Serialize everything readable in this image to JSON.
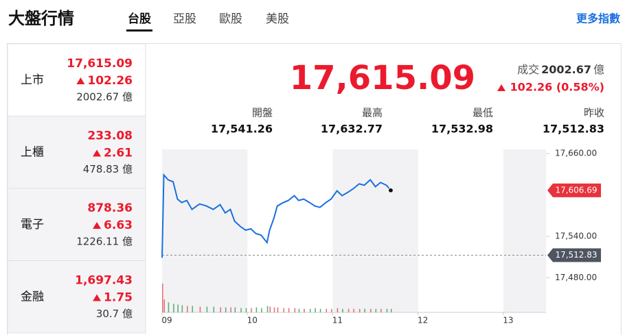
{
  "header": {
    "title": "大盤行情",
    "tabs": [
      "台股",
      "亞股",
      "歐股",
      "美股"
    ],
    "more_link": "更多指數"
  },
  "markets": [
    {
      "name": "上市",
      "price": "17,615.09",
      "change": "102.26",
      "volume": "2002.67 億"
    },
    {
      "name": "上櫃",
      "price": "233.08",
      "change": "2.61",
      "volume": "478.83 億"
    },
    {
      "name": "電子",
      "price": "878.36",
      "change": "6.63",
      "volume": "1226.11 億"
    },
    {
      "name": "金融",
      "price": "1,697.43",
      "change": "1.75",
      "volume": "30.7 億"
    }
  ],
  "summary": {
    "price": "17,615.09",
    "turnover_label": "成交",
    "turnover": "2002.67",
    "turnover_unit": "億",
    "change": "102.26 (0.58%)",
    "stats": [
      {
        "label": "開盤",
        "value": "17,541.26"
      },
      {
        "label": "最高",
        "value": "17,632.77"
      },
      {
        "label": "最低",
        "value": "17,532.98"
      },
      {
        "label": "昨收",
        "value": "17,512.83"
      }
    ]
  },
  "chart_data": {
    "type": "line",
    "xlim": [
      9,
      13.5
    ],
    "xticks": [
      {
        "value": 9,
        "label": "09"
      },
      {
        "value": 10,
        "label": "10"
      },
      {
        "value": 11,
        "label": "11"
      },
      {
        "value": 12,
        "label": "12"
      },
      {
        "value": 13,
        "label": "13"
      }
    ],
    "ylim": [
      17430,
      17666
    ],
    "yticks": [
      {
        "value": 17660,
        "label": "17,660.00"
      },
      {
        "value": 17540,
        "label": "17,540.00"
      },
      {
        "value": 17480,
        "label": "17,480.00"
      }
    ],
    "series": [
      {
        "color": "#1a6fe0",
        "x": [
          9.0,
          9.02,
          9.07,
          9.13,
          9.18,
          9.23,
          9.29,
          9.35,
          9.44,
          9.52,
          9.6,
          9.68,
          9.74,
          9.8,
          9.85,
          9.92,
          9.98,
          10.04,
          10.1,
          10.16,
          10.23,
          10.26,
          10.31,
          10.35,
          10.42,
          10.48,
          10.55,
          10.6,
          10.66,
          10.73,
          10.79,
          10.85,
          10.92,
          10.98,
          11.05,
          11.11,
          11.18,
          11.24,
          11.31,
          11.37,
          11.44,
          11.5,
          11.56,
          11.63,
          11.68
        ],
        "values": [
          17509,
          17629,
          17622,
          17619,
          17594,
          17589,
          17592,
          17579,
          17587,
          17584,
          17579,
          17586,
          17574,
          17579,
          17562,
          17554,
          17549,
          17551,
          17544,
          17542,
          17531,
          17549,
          17566,
          17584,
          17589,
          17592,
          17599,
          17592,
          17594,
          17589,
          17584,
          17582,
          17589,
          17594,
          17606,
          17599,
          17604,
          17609,
          17616,
          17614,
          17622,
          17612,
          17618,
          17614,
          17606.69
        ]
      }
    ],
    "volume": {
      "values": [
        40,
        18,
        14,
        12,
        11,
        10,
        9,
        9,
        8,
        8,
        8,
        7,
        7,
        7,
        7,
        6,
        6,
        6,
        7,
        6,
        9,
        8,
        7,
        7,
        6,
        6,
        6,
        5,
        5,
        5,
        6,
        5,
        5,
        5,
        6,
        5,
        5,
        5,
        5,
        5,
        5,
        5,
        5,
        5,
        5
      ]
    },
    "last_price": {
      "value": 17606.69,
      "label": "17,606.69"
    },
    "prev_close": {
      "value": 17512.83,
      "label": "17,512.83"
    }
  }
}
